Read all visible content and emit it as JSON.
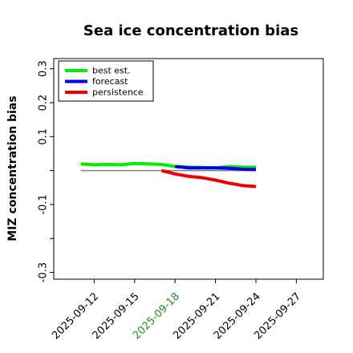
{
  "chart_data": {
    "type": "line",
    "title": "Sea ice concentration bias",
    "ylabel": "MIZ concentration bias",
    "xlabel": "",
    "ylim": [
      -0.32,
      0.33
    ],
    "xlim": [
      "2025-09-09",
      "2025-09-29"
    ],
    "yticks": [
      {
        "value": 0.3,
        "label": "0.3"
      },
      {
        "value": 0.2,
        "label": "0.2"
      },
      {
        "value": 0.1,
        "label": "0.1"
      },
      {
        "value": 0.0,
        "label": ""
      },
      {
        "value": -0.1,
        "label": "-0.1"
      },
      {
        "value": -0.2,
        "label": ""
      },
      {
        "value": -0.3,
        "label": "-0.3"
      }
    ],
    "xticks": [
      {
        "date": "2025-09-12",
        "label": "2025-09-12",
        "color": "#000000"
      },
      {
        "date": "2025-09-15",
        "label": "2025-09-15",
        "color": "#000000"
      },
      {
        "date": "2025-09-18",
        "label": "2025-09-18",
        "color": "#228B22"
      },
      {
        "date": "2025-09-21",
        "label": "2025-09-21",
        "color": "#000000"
      },
      {
        "date": "2025-09-24",
        "label": "2025-09-24",
        "color": "#000000"
      },
      {
        "date": "2025-09-27",
        "label": "2025-09-27",
        "color": "#000000"
      }
    ],
    "zero_line": {
      "from": "2025-09-11",
      "to": "2025-09-24",
      "y": 0.0,
      "color": "#808080"
    },
    "legend": {
      "placement": "top-left",
      "entries": [
        {
          "label": "best est.",
          "color": "#00ee00"
        },
        {
          "label": "forecast",
          "color": "#0000ee"
        },
        {
          "label": "persistence",
          "color": "#ee0000"
        }
      ]
    },
    "series": [
      {
        "name": "best est.",
        "color": "#00ee00",
        "points": [
          {
            "x": "2025-09-11",
            "y": 0.02
          },
          {
            "x": "2025-09-12",
            "y": 0.017
          },
          {
            "x": "2025-09-13",
            "y": 0.018
          },
          {
            "x": "2025-09-14",
            "y": 0.017
          },
          {
            "x": "2025-09-15",
            "y": 0.021
          },
          {
            "x": "2025-09-16",
            "y": 0.02
          },
          {
            "x": "2025-09-17",
            "y": 0.018
          },
          {
            "x": "2025-09-18",
            "y": 0.012
          },
          {
            "x": "2025-09-19",
            "y": 0.01
          },
          {
            "x": "2025-09-20",
            "y": 0.009
          },
          {
            "x": "2025-09-21",
            "y": 0.008
          },
          {
            "x": "2025-09-22",
            "y": 0.012
          },
          {
            "x": "2025-09-23",
            "y": 0.01
          },
          {
            "x": "2025-09-24",
            "y": 0.01
          }
        ]
      },
      {
        "name": "forecast",
        "color": "#0000ee",
        "points": [
          {
            "x": "2025-09-18",
            "y": 0.012
          },
          {
            "x": "2025-09-19",
            "y": 0.008
          },
          {
            "x": "2025-09-20",
            "y": 0.008
          },
          {
            "x": "2025-09-21",
            "y": 0.008
          },
          {
            "x": "2025-09-22",
            "y": 0.007
          },
          {
            "x": "2025-09-23",
            "y": 0.004
          },
          {
            "x": "2025-09-24",
            "y": 0.003
          }
        ]
      },
      {
        "name": "persistence",
        "color": "#ee0000",
        "points": [
          {
            "x": "2025-09-17",
            "y": 0.0
          },
          {
            "x": "2025-09-18",
            "y": -0.01
          },
          {
            "x": "2025-09-19",
            "y": -0.017
          },
          {
            "x": "2025-09-20",
            "y": -0.021
          },
          {
            "x": "2025-09-21",
            "y": -0.028
          },
          {
            "x": "2025-09-22",
            "y": -0.037
          },
          {
            "x": "2025-09-23",
            "y": -0.044
          },
          {
            "x": "2025-09-24",
            "y": -0.047
          }
        ]
      }
    ]
  }
}
